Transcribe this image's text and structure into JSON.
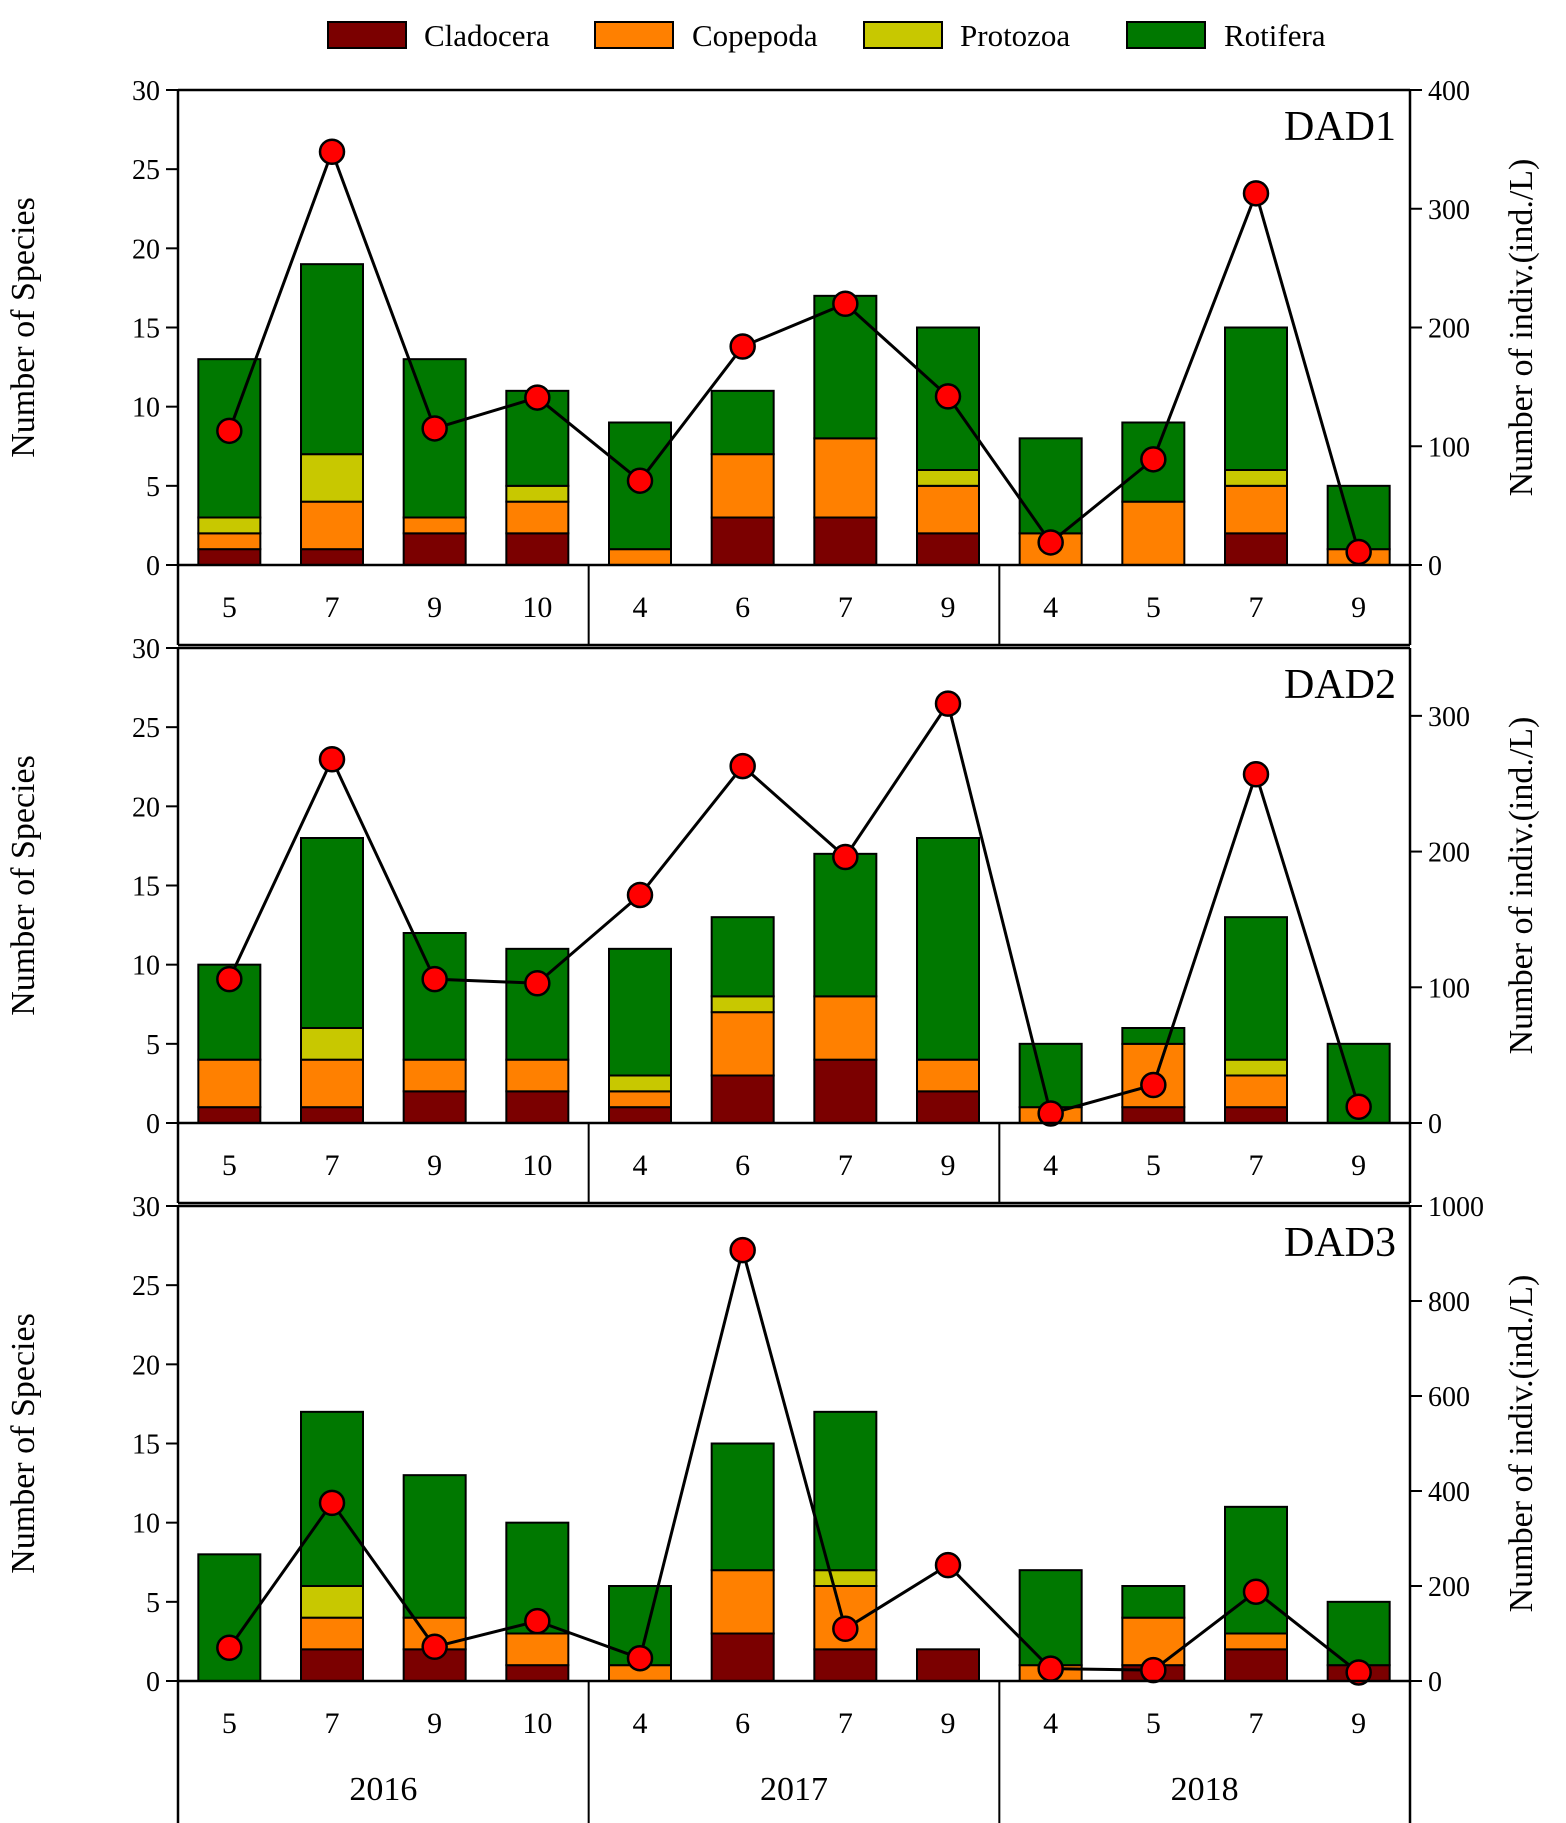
{
  "colors": {
    "cladocera": "#7b0000",
    "copepoda": "#ff8000",
    "protozoa": "#c8c800",
    "rotifera": "#007800",
    "marker": "#ff0000"
  },
  "legend": [
    "Cladocera",
    "Copepoda",
    "Protozoa",
    "Rotifera"
  ],
  "years": [
    "2016",
    "2017",
    "2018"
  ],
  "chart_data": [
    {
      "type": "bar",
      "title": "DAD1",
      "categories": [
        "5",
        "7",
        "9",
        "10",
        "4",
        "6",
        "7",
        "9",
        "4",
        "5",
        "7",
        "9"
      ],
      "ylabel": "Number of Species",
      "y2label": "Number of indiv.(ind./L)",
      "ylim": [
        0,
        30
      ],
      "yticks": [
        0,
        5,
        10,
        15,
        20,
        25,
        30
      ],
      "y2lim": [
        0,
        400
      ],
      "y2ticks": [
        0,
        100,
        200,
        300,
        400
      ],
      "series": [
        {
          "name": "Cladocera",
          "values": [
            1,
            1,
            2,
            2,
            0,
            3,
            3,
            2,
            0,
            0,
            2,
            0
          ]
        },
        {
          "name": "Copepoda",
          "values": [
            1,
            3,
            1,
            2,
            1,
            4,
            5,
            3,
            2,
            4,
            3,
            1
          ]
        },
        {
          "name": "Protozoa",
          "values": [
            1,
            3,
            0,
            1,
            0,
            0,
            0,
            1,
            0,
            0,
            1,
            0
          ]
        },
        {
          "name": "Rotifera",
          "values": [
            10,
            12,
            10,
            6,
            8,
            4,
            9,
            9,
            6,
            5,
            9,
            4
          ]
        }
      ],
      "line": {
        "name": "Number of indiv.(ind./L)",
        "values": [
          113,
          348,
          115,
          141,
          71,
          184,
          220,
          142,
          19,
          89,
          313,
          11
        ]
      }
    },
    {
      "type": "bar",
      "title": "DAD2",
      "categories": [
        "5",
        "7",
        "9",
        "10",
        "4",
        "6",
        "7",
        "9",
        "4",
        "5",
        "7",
        "9"
      ],
      "ylabel": "Number of Species",
      "y2label": "Number of indiv.(ind./L)",
      "ylim": [
        0,
        30
      ],
      "yticks": [
        0,
        5,
        10,
        15,
        20,
        25,
        30
      ],
      "y2lim": [
        0,
        350
      ],
      "y2ticks": [
        0,
        100,
        200,
        300
      ],
      "series": [
        {
          "name": "Cladocera",
          "values": [
            1,
            1,
            2,
            2,
            1,
            3,
            4,
            2,
            0,
            1,
            1,
            0
          ]
        },
        {
          "name": "Copepoda",
          "values": [
            3,
            3,
            2,
            2,
            1,
            4,
            4,
            2,
            1,
            4,
            2,
            0
          ]
        },
        {
          "name": "Protozoa",
          "values": [
            0,
            2,
            0,
            0,
            1,
            1,
            0,
            0,
            0,
            0,
            1,
            0
          ]
        },
        {
          "name": "Rotifera",
          "values": [
            6,
            12,
            8,
            7,
            8,
            5,
            9,
            14,
            4,
            1,
            9,
            5
          ]
        }
      ],
      "line": {
        "name": "Number of indiv.(ind./L)",
        "values": [
          106,
          268,
          106,
          103,
          168,
          263,
          196,
          309,
          7,
          28,
          257,
          12
        ]
      }
    },
    {
      "type": "bar",
      "title": "DAD3",
      "categories": [
        "5",
        "7",
        "9",
        "10",
        "4",
        "6",
        "7",
        "9",
        "4",
        "5",
        "7",
        "9"
      ],
      "ylabel": "Number of Species",
      "y2label": "Number of indiv.(ind./L)",
      "ylim": [
        0,
        30
      ],
      "yticks": [
        0,
        5,
        10,
        15,
        20,
        25,
        30
      ],
      "y2lim": [
        0,
        1000
      ],
      "y2ticks": [
        0,
        200,
        400,
        600,
        800,
        1000
      ],
      "series": [
        {
          "name": "Cladocera",
          "values": [
            0,
            2,
            2,
            1,
            0,
            3,
            2,
            2,
            0,
            1,
            2,
            1
          ]
        },
        {
          "name": "Copepoda",
          "values": [
            0,
            2,
            2,
            2,
            1,
            4,
            4,
            0,
            1,
            3,
            1,
            0
          ]
        },
        {
          "name": "Protozoa",
          "values": [
            0,
            2,
            0,
            0,
            0,
            0,
            1,
            0,
            0,
            0,
            0,
            0
          ]
        },
        {
          "name": "Rotifera",
          "values": [
            8,
            11,
            9,
            7,
            5,
            8,
            10,
            0,
            6,
            2,
            8,
            4
          ]
        }
      ],
      "line": {
        "name": "Number of indiv.(ind./L)",
        "values": [
          70,
          375,
          72,
          126,
          48,
          907,
          110,
          244,
          26,
          23,
          188,
          18
        ]
      }
    }
  ]
}
